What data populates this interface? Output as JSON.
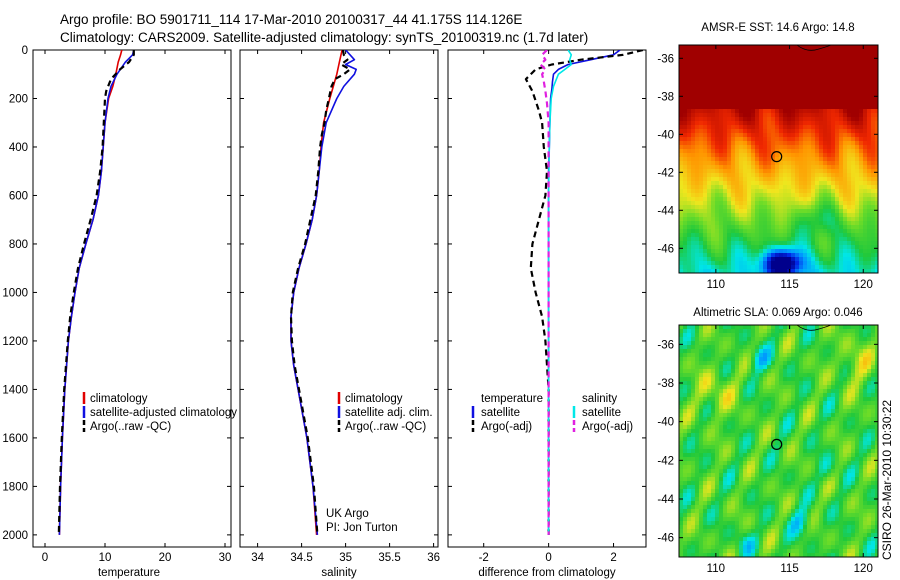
{
  "header": {
    "line1": "Argo profile: BO 5901711_114 17-Mar-2010 20100317_44 41.175S 114.126E",
    "line2": "Climatology: CARS2009. Satellite-adjusted climatology: synTS_20100319.nc (1.7d later)"
  },
  "stamp": "CSIRO 26-Mar-2010 10:30:22",
  "colors": {
    "red": "#e00000",
    "blue": "#1010e0",
    "black": "#000000",
    "cyan": "#00e8e8",
    "magenta": "#e020e0"
  },
  "chart_data": [
    {
      "id": "temperature",
      "type": "line",
      "xlabel": "temperature",
      "ylabel": "",
      "xlim": [
        -2,
        31
      ],
      "ylim": [
        2050,
        0
      ],
      "xticks": [
        0,
        10,
        20,
        30
      ],
      "yticks": [
        0,
        200,
        400,
        600,
        800,
        1000,
        1200,
        1400,
        1600,
        1800,
        2000
      ],
      "legend": [
        "climatology",
        "satellite-adjusted climatology",
        "Argo(..raw -QC)"
      ],
      "series": [
        {
          "name": "climatology",
          "color": "red",
          "dash": false,
          "depth": [
            0,
            20,
            50,
            100,
            150,
            200,
            300,
            400,
            500,
            600,
            700,
            800,
            900,
            1000,
            1100,
            1200,
            1400,
            1600,
            1800,
            2000
          ],
          "values": [
            12.8,
            12.6,
            12.2,
            11.8,
            11.3,
            10.6,
            10.0,
            9.7,
            9.4,
            8.9,
            8.0,
            6.8,
            5.7,
            5.0,
            4.4,
            3.9,
            3.3,
            2.9,
            2.6,
            2.4
          ]
        },
        {
          "name": "satellite-adjusted climatology",
          "color": "blue",
          "dash": false,
          "depth": [
            0,
            20,
            50,
            100,
            150,
            200,
            300,
            400,
            500,
            600,
            700,
            800,
            900,
            1000,
            1100,
            1200,
            1400,
            1600,
            1800,
            2000
          ],
          "values": [
            14.8,
            14.6,
            13.4,
            12.0,
            11.0,
            10.5,
            10.0,
            9.7,
            9.4,
            8.9,
            8.0,
            6.8,
            5.7,
            5.0,
            4.4,
            3.9,
            3.3,
            2.9,
            2.6,
            2.4
          ]
        },
        {
          "name": "Argo(..raw -QC)",
          "color": "black",
          "dash": true,
          "depth": [
            0,
            20,
            50,
            80,
            120,
            170,
            200,
            300,
            400,
            500,
            600,
            700,
            800,
            900,
            1000,
            1100,
            1200,
            1400,
            1600,
            1800,
            2000
          ],
          "values": [
            14.8,
            14.8,
            14.0,
            12.5,
            11.0,
            10.2,
            10.0,
            9.8,
            9.6,
            9.2,
            8.6,
            7.6,
            6.5,
            5.5,
            4.8,
            4.2,
            3.8,
            3.2,
            2.8,
            2.5,
            2.3
          ]
        }
      ]
    },
    {
      "id": "salinity",
      "type": "line",
      "xlabel": "salinity",
      "ylabel": "",
      "xlim": [
        33.8,
        36.05
      ],
      "ylim": [
        2050,
        0
      ],
      "xticks": [
        34,
        34.5,
        35,
        35.5,
        36
      ],
      "yticks": [
        0,
        200,
        400,
        600,
        800,
        1000,
        1200,
        1400,
        1600,
        1800,
        2000
      ],
      "legend": [
        "climatology",
        "satellite adj. clim.",
        "Argo(..raw -QC)"
      ],
      "annotations": [
        "UK Argo",
        "PI: Jon Turton"
      ],
      "series": [
        {
          "name": "climatology",
          "color": "red",
          "dash": false,
          "depth": [
            0,
            50,
            100,
            150,
            200,
            300,
            400,
            500,
            600,
            700,
            800,
            900,
            1000,
            1100,
            1200,
            1300,
            1400,
            1600,
            1800,
            2000
          ],
          "values": [
            34.96,
            34.93,
            34.9,
            34.86,
            34.82,
            34.75,
            34.72,
            34.7,
            34.67,
            34.62,
            34.55,
            34.47,
            34.41,
            34.38,
            34.38,
            34.41,
            34.46,
            34.56,
            34.63,
            34.67
          ]
        },
        {
          "name": "satellite adj. clim.",
          "color": "blue",
          "dash": false,
          "depth": [
            0,
            20,
            40,
            60,
            80,
            100,
            150,
            200,
            300,
            400,
            500,
            600,
            700,
            800,
            900,
            1000,
            1100,
            1200,
            1300,
            1400,
            1600,
            1800,
            2000
          ],
          "values": [
            35.0,
            35.05,
            35.1,
            35.0,
            35.12,
            35.1,
            34.98,
            34.9,
            34.78,
            34.73,
            34.7,
            34.67,
            34.62,
            34.55,
            34.47,
            34.41,
            34.38,
            34.38,
            34.41,
            34.46,
            34.56,
            34.63,
            34.68
          ]
        },
        {
          "name": "Argo(..raw -QC)",
          "color": "black",
          "dash": true,
          "depth": [
            0,
            20,
            40,
            60,
            80,
            100,
            120,
            150,
            200,
            250,
            300,
            350,
            400,
            500,
            600,
            700,
            800,
            900,
            1000,
            1100,
            1200,
            1300,
            1400,
            1600,
            1800,
            2000
          ],
          "values": [
            34.97,
            34.98,
            35.02,
            34.95,
            35.05,
            34.98,
            34.88,
            34.84,
            34.81,
            34.78,
            34.76,
            34.73,
            34.71,
            34.69,
            34.66,
            34.6,
            34.54,
            34.46,
            34.4,
            34.38,
            34.39,
            34.42,
            34.47,
            34.57,
            34.64,
            34.68
          ]
        }
      ]
    },
    {
      "id": "difference",
      "type": "line",
      "xlabel": "difference from climatology",
      "ylabel": "",
      "xlim": [
        -3.1,
        3.0
      ],
      "ylim": [
        2050,
        0
      ],
      "xticks": [
        -2,
        0,
        2
      ],
      "yticks": [
        0,
        200,
        400,
        600,
        800,
        1000,
        1200,
        1400,
        1600,
        1800,
        2000
      ],
      "legend_headers": [
        "temperature",
        "salinity"
      ],
      "legend": [
        "satellite",
        "Argo(-adj)",
        "satellite",
        "Argo(-adj)"
      ],
      "series": [
        {
          "name": "satellite",
          "group": "temperature",
          "color": "blue",
          "dash": false,
          "depth": [
            0,
            20,
            40,
            60,
            80,
            100,
            130,
            160,
            200,
            300,
            400,
            500,
            600,
            800,
            1000,
            1400,
            2000
          ],
          "values": [
            2.2,
            2.0,
            1.3,
            0.6,
            0.3,
            0.15,
            0.12,
            0.1,
            0.06,
            0.04,
            0.02,
            0.0,
            0.0,
            0.0,
            0.0,
            0.0,
            0.0
          ]
        },
        {
          "name": "Argo(-adj)",
          "group": "temperature",
          "color": "black",
          "dash": true,
          "depth": [
            0,
            20,
            40,
            60,
            80,
            120,
            170,
            250,
            300,
            400,
            500,
            600,
            700,
            800,
            900,
            1000,
            1100,
            1200,
            1400,
            1600,
            1800,
            2000
          ],
          "values": [
            2.9,
            2.3,
            1.0,
            0.1,
            -0.4,
            -0.7,
            -0.5,
            -0.3,
            -0.2,
            -0.15,
            -0.05,
            -0.1,
            -0.3,
            -0.5,
            -0.55,
            -0.4,
            -0.2,
            -0.1,
            0.0,
            0.0,
            0.0,
            0.0
          ]
        },
        {
          "name": "satellite",
          "group": "salinity",
          "color": "cyan",
          "dash": false,
          "depth": [
            0,
            20,
            40,
            60,
            80,
            100,
            150,
            200,
            300,
            400,
            600,
            800,
            1000,
            1400,
            2000
          ],
          "values": [
            0.6,
            0.7,
            0.65,
            0.7,
            0.5,
            0.3,
            0.15,
            0.08,
            0.04,
            0.02,
            0.0,
            0.0,
            0.0,
            0.0,
            0.0
          ]
        },
        {
          "name": "Argo(-adj)",
          "group": "salinity",
          "color": "magenta",
          "dash": true,
          "depth": [
            0,
            20,
            40,
            60,
            80,
            100,
            130,
            170,
            220,
            300,
            400,
            500,
            700,
            900,
            1100,
            1400,
            2000
          ],
          "values": [
            -0.05,
            -0.2,
            -0.1,
            -0.25,
            -0.1,
            -0.2,
            -0.15,
            -0.1,
            -0.05,
            0.0,
            0.0,
            0.0,
            0.0,
            0.0,
            0.0,
            0.0,
            0.0
          ]
        }
      ]
    },
    {
      "id": "sst_map",
      "type": "heatmap",
      "title": "AMSR-E SST: 14.6 Argo: 14.8",
      "xlim": [
        107.5,
        121
      ],
      "ylim": [
        -47.3,
        -35.3
      ],
      "xticks": [
        110,
        115,
        120
      ],
      "yticks": [
        -36,
        -38,
        -40,
        -42,
        -44,
        -46
      ],
      "marker": {
        "lon": 114.126,
        "lat": -41.175
      }
    },
    {
      "id": "sla_map",
      "type": "heatmap",
      "title": "Altimetric SLA: 0.069 Argo: 0.046",
      "xlim": [
        107.5,
        121
      ],
      "ylim": [
        -47.0,
        -35.0
      ],
      "xticks": [
        110,
        115,
        120
      ],
      "yticks": [
        -36,
        -38,
        -40,
        -42,
        -44,
        -46
      ],
      "marker": {
        "lon": 114.126,
        "lat": -41.175
      }
    }
  ]
}
